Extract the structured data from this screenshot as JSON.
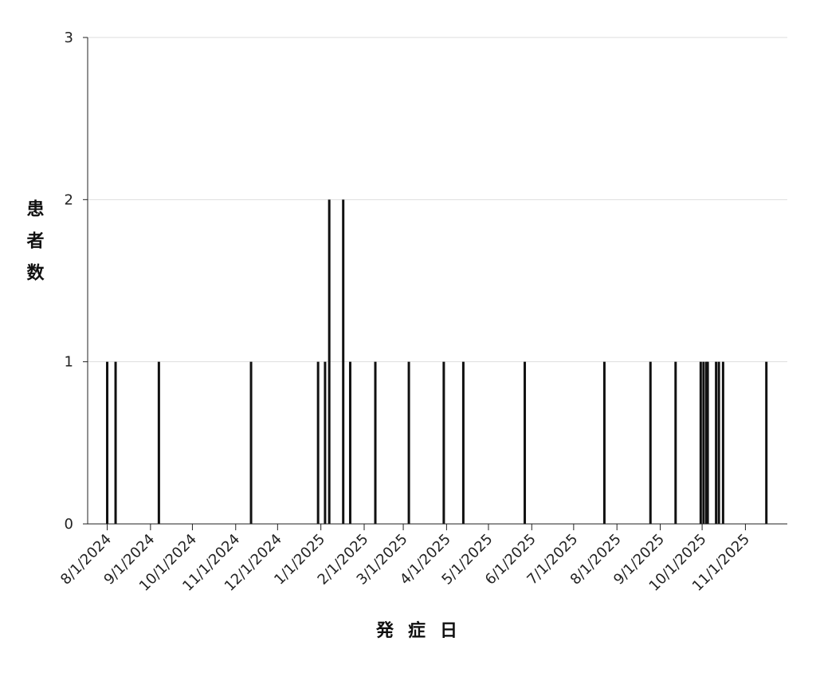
{
  "chart_data": {
    "type": "bar",
    "x_title": "発症日",
    "y_title": "患者数",
    "x": [
      "2024-08-01",
      "2024-08-07",
      "2024-09-07",
      "2024-11-12",
      "2024-12-30",
      "2025-01-04",
      "2025-01-07",
      "2025-01-17",
      "2025-01-22",
      "2025-02-09",
      "2025-03-05",
      "2025-03-30",
      "2025-04-13",
      "2025-05-27",
      "2025-07-23",
      "2025-08-25",
      "2025-09-12",
      "2025-09-30",
      "2025-10-02",
      "2025-10-04",
      "2025-10-05",
      "2025-10-11",
      "2025-10-13",
      "2025-10-16",
      "2025-11-16"
    ],
    "values": [
      1,
      1,
      1,
      1,
      1,
      1,
      2,
      2,
      1,
      1,
      1,
      1,
      1,
      1,
      1,
      1,
      1,
      1,
      1,
      1,
      1,
      1,
      1,
      1,
      1
    ],
    "color": "#111111",
    "xlim": [
      "2024-07-18",
      "2025-12-01"
    ],
    "xticks": [
      {
        "value": "2024-08-01",
        "label": "8/1/2024"
      },
      {
        "value": "2024-09-01",
        "label": "9/1/2024"
      },
      {
        "value": "2024-10-01",
        "label": "10/1/2024"
      },
      {
        "value": "2024-11-01",
        "label": "11/1/2024"
      },
      {
        "value": "2024-12-01",
        "label": "12/1/2024"
      },
      {
        "value": "2025-01-01",
        "label": "1/1/2025"
      },
      {
        "value": "2025-02-01",
        "label": "2/1/2025"
      },
      {
        "value": "2025-03-01",
        "label": "3/1/2025"
      },
      {
        "value": "2025-04-01",
        "label": "4/1/2025"
      },
      {
        "value": "2025-05-01",
        "label": "5/1/2025"
      },
      {
        "value": "2025-06-01",
        "label": "6/1/2025"
      },
      {
        "value": "2025-07-01",
        "label": "7/1/2025"
      },
      {
        "value": "2025-08-01",
        "label": "8/1/2025"
      },
      {
        "value": "2025-09-01",
        "label": "9/1/2025"
      },
      {
        "value": "2025-10-01",
        "label": "10/1/2025"
      },
      {
        "value": "2025-11-01",
        "label": "11/1/2025"
      }
    ],
    "ylim": [
      0,
      3
    ],
    "yticks": [
      0,
      1,
      2,
      3
    ],
    "grid": true
  }
}
